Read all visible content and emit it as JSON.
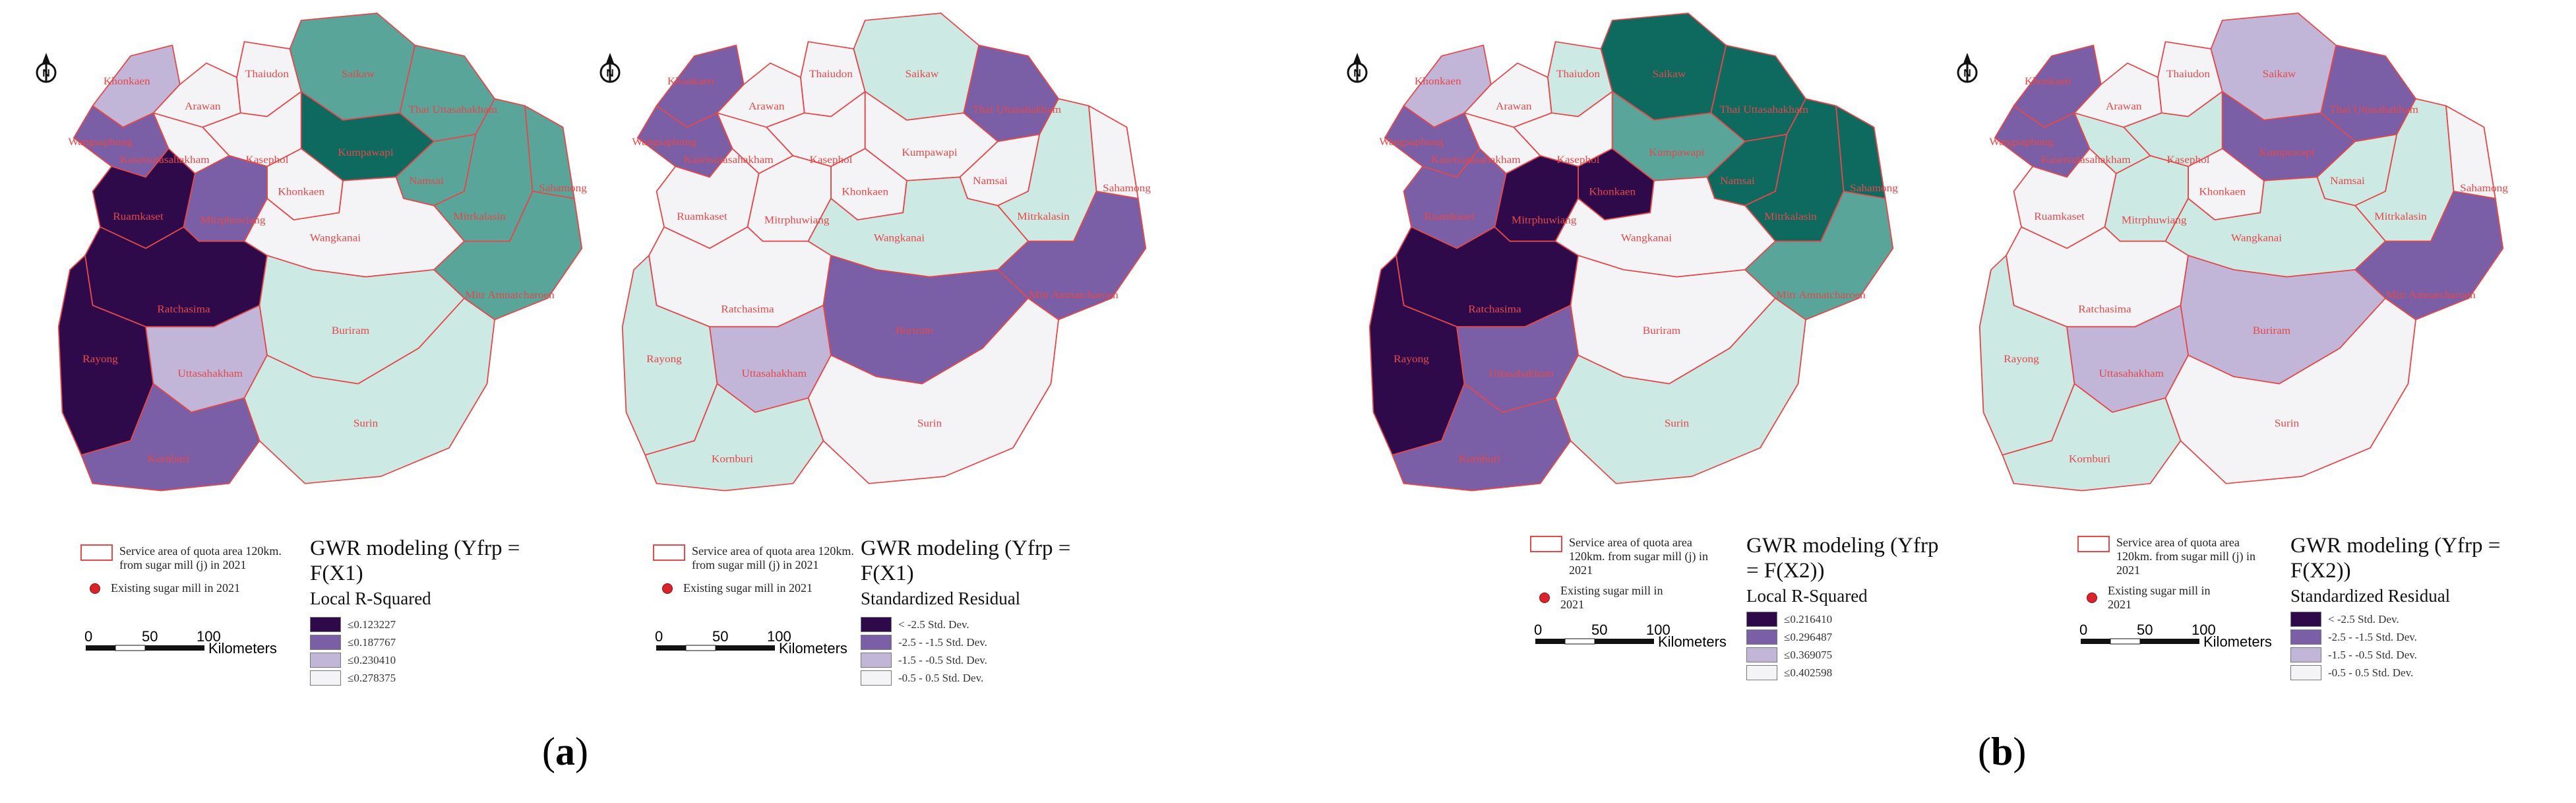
{
  "figure": {
    "panels": [
      {
        "id": "a",
        "label": "a",
        "maps": [
          {
            "legend": {
              "service_area": "Service area of quota area 120km. from sugar mill (j) in 2021",
              "mill": "Existing sugar mill in 2021",
              "title": "GWR modeling (Yfrp = F(X1)",
              "subtitle": "Local R-Squared",
              "classes": [
                {
                  "label": "≤0.123227",
                  "color": "#2e0a4a"
                },
                {
                  "label": "≤0.187767",
                  "color": "#7a5fa6"
                },
                {
                  "label": "≤0.230410",
                  "color": "#c1b6d8"
                },
                {
                  "label": "≤0.278375",
                  "color": "#f4f4f6"
                }
              ],
              "scale_ticks": [
                "0",
                "50",
                "100"
              ],
              "scale_unit": "Kilometers"
            },
            "north": "N"
          },
          {
            "legend": {
              "service_area": "Service area of quota area 120km. from sugar mill (j) in 2021",
              "mill": "Existing sugar mill in 2021",
              "title": "GWR modeling (Yfrp = F(X1)",
              "subtitle": "Standardized Residual",
              "classes": [
                {
                  "label": "< -2.5 Std. Dev.",
                  "color": "#2e0a4a"
                },
                {
                  "label": "-2.5 - -1.5 Std. Dev.",
                  "color": "#7a5fa6"
                },
                {
                  "label": "-1.5 - -0.5 Std. Dev.",
                  "color": "#c1b6d8"
                },
                {
                  "label": "-0.5 - 0.5 Std. Dev.",
                  "color": "#f4f4f6"
                }
              ],
              "scale_ticks": [
                "0",
                "50",
                "100"
              ],
              "scale_unit": "Kilometers"
            },
            "north": "N"
          }
        ]
      },
      {
        "id": "b",
        "label": "b",
        "maps": [
          {
            "legend": {
              "service_area": "Service area of quota area 120km. from sugar mill (j) in 2021",
              "mill": "Existing sugar mill in 2021",
              "title": "GWR modeling (Yfrp = F(X2))",
              "subtitle": "Local R-Squared",
              "classes": [
                {
                  "label": "≤0.216410",
                  "color": "#2e0a4a"
                },
                {
                  "label": "≤0.296487",
                  "color": "#7a5fa6"
                },
                {
                  "label": "≤0.369075",
                  "color": "#c1b6d8"
                },
                {
                  "label": "≤0.402598",
                  "color": "#f4f4f6"
                }
              ],
              "scale_ticks": [
                "0",
                "50",
                "100"
              ],
              "scale_unit": "Kilometers"
            },
            "north": "N"
          },
          {
            "legend": {
              "service_area": "Service area of quota area 120km. from sugar mill (j) in 2021",
              "mill": "Existing sugar mill in 2021",
              "title": "GWR modeling (Yfrp = F(X2))",
              "subtitle": "Standardized Residual",
              "classes": [
                {
                  "label": "< -2.5 Std. Dev.",
                  "color": "#2e0a4a"
                },
                {
                  "label": "-2.5 - -1.5 Std. Dev.",
                  "color": "#7a5fa6"
                },
                {
                  "label": "-1.5 - -0.5 Std. Dev.",
                  "color": "#c1b6d8"
                },
                {
                  "label": "-0.5 - 0.5 Std. Dev.",
                  "color": "#f4f4f6"
                }
              ],
              "scale_ticks": [
                "0",
                "50",
                "100"
              ],
              "scale_unit": "Kilometers"
            },
            "north": "N"
          }
        ]
      }
    ],
    "district_names": {
      "khonkaen1": "Khonkaen",
      "wangsaphung": "Wangsaphung",
      "arawan": "Arawan",
      "kasetsomboon": "Kasetsutasahakham",
      "thaiudon": "Thaiudon",
      "saikaw": "Saikaw",
      "thai_utt": "Thai Uttasahakham",
      "kasphol": "Kasephol",
      "kumpawapi": "Kumpawapi",
      "namsai": "Namsai",
      "khonkaen2": "Khonkaen",
      "ruamkaset": "Ruamkaset",
      "mitrphuwiang": "Mitrphuwiang",
      "mitrkalasin": "Mitrkalasin",
      "sahamong": "Sahamong",
      "wangkanai": "Wangkanai",
      "mitr_amnat": "Mitr Amnatcharoen",
      "ratchasima": "Ratchasima",
      "rayong": "Rayong",
      "buriram": "Buriram",
      "uttasahakham": "Uttasahakham",
      "korat": "Kornburi",
      "surin": "Surin"
    },
    "district_fills": {
      "a_r2": {
        "khonkaen1": "#c1b6d8",
        "wangsaphung": "#7a5fa6",
        "arawan": "#f4f4f6",
        "kasetsomboon": "#f4f4f6",
        "thaiudon": "#f4f4f6",
        "saikaw": "#5aa59a",
        "thai_utt": "#5aa59a",
        "kasphol": "#f4f4f6",
        "kumpawapi": "#0e6a5e",
        "namsai": "#5aa59a",
        "khonkaen2": "#f4f4f6",
        "ruamkaset": "#2e0a4a",
        "mitrphuwiang": "#7a5fa6",
        "mitrkalasin": "#5aa59a",
        "sahamong": "#5aa59a",
        "wangkanai": "#f4f4f6",
        "mitr_amnat": "#5aa59a",
        "ratchasima": "#2e0a4a",
        "rayong": "#2e0a4a",
        "buriram": "#cde9e3",
        "uttasahakham": "#c1b6d8",
        "korat": "#7a5fa6",
        "surin": "#cde9e3"
      },
      "a_res": {
        "khonkaen1": "#7a5fa6",
        "wangsaphung": "#7a5fa6",
        "arawan": "#f4f4f6",
        "kasetsomboon": "#f4f4f6",
        "thaiudon": "#f4f4f6",
        "saikaw": "#cde9e3",
        "thai_utt": "#7a5fa6",
        "kasphol": "#f4f4f6",
        "kumpawapi": "#f4f4f6",
        "namsai": "#f4f4f6",
        "khonkaen2": "#f4f4f6",
        "ruamkaset": "#f4f4f6",
        "mitrphuwiang": "#f4f4f6",
        "mitrkalasin": "#cde9e3",
        "sahamong": "#f4f4f6",
        "wangkanai": "#cde9e3",
        "mitr_amnat": "#7a5fa6",
        "ratchasima": "#f4f4f6",
        "rayong": "#cde9e3",
        "buriram": "#7a5fa6",
        "uttasahakham": "#c1b6d8",
        "korat": "#cde9e3",
        "surin": "#f4f4f6"
      },
      "b_r2": {
        "khonkaen1": "#c1b6d8",
        "wangsaphung": "#7a5fa6",
        "arawan": "#f4f4f6",
        "kasetsomboon": "#f4f4f6",
        "thaiudon": "#cde9e3",
        "saikaw": "#0e6a5e",
        "thai_utt": "#0e6a5e",
        "kasphol": "#f4f4f6",
        "kumpawapi": "#5aa59a",
        "namsai": "#0e6a5e",
        "khonkaen2": "#2e0a4a",
        "ruamkaset": "#7a5fa6",
        "mitrphuwiang": "#2e0a4a",
        "mitrkalasin": "#0e6a5e",
        "sahamong": "#0e6a5e",
        "wangkanai": "#f4f4f6",
        "mitr_amnat": "#5aa59a",
        "ratchasima": "#2e0a4a",
        "rayong": "#2e0a4a",
        "buriram": "#f4f4f6",
        "uttasahakham": "#7a5fa6",
        "korat": "#7a5fa6",
        "surin": "#cde9e3"
      },
      "b_res": {
        "khonkaen1": "#7a5fa6",
        "wangsaphung": "#7a5fa6",
        "arawan": "#f4f4f6",
        "kasetsomboon": "#cde9e3",
        "thaiudon": "#f4f4f6",
        "saikaw": "#c1b6d8",
        "thai_utt": "#7a5fa6",
        "kasphol": "#cde9e3",
        "kumpawapi": "#7a5fa6",
        "namsai": "#cde9e3",
        "khonkaen2": "#f4f4f6",
        "ruamkaset": "#f4f4f6",
        "mitrphuwiang": "#cde9e3",
        "mitrkalasin": "#cde9e3",
        "sahamong": "#f4f4f6",
        "wangkanai": "#cde9e3",
        "mitr_amnat": "#7a5fa6",
        "ratchasima": "#f4f4f6",
        "rayong": "#cde9e3",
        "buriram": "#c1b6d8",
        "uttasahakham": "#c1b6d8",
        "korat": "#cde9e3",
        "surin": "#f4f4f6"
      }
    },
    "colors": {
      "boundary": "#e4484a",
      "label": "#e4484a",
      "mill": "#d9232a"
    }
  }
}
